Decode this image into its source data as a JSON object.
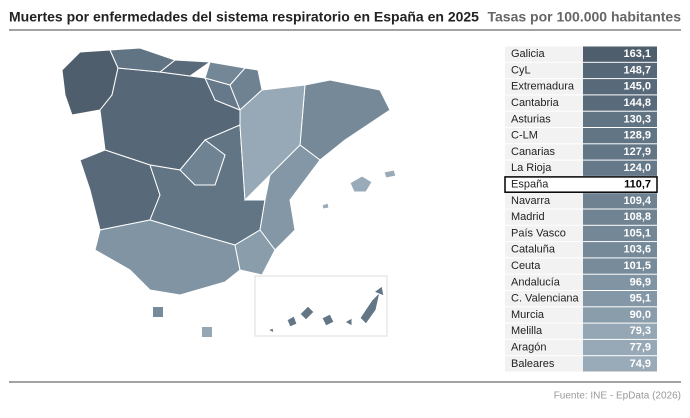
{
  "header": {
    "title": "Muertes por enfermedades del sistema respiratorio en España en 2025",
    "subtitle": "Tasas por 100.000 habitantes"
  },
  "table": {
    "rows": [
      {
        "region": "Galicia",
        "value": "163,1",
        "color": "#4e5e6c"
      },
      {
        "region": "CyL",
        "value": "148,7",
        "color": "#566878"
      },
      {
        "region": "Extremadura",
        "value": "145,0",
        "color": "#586a7a"
      },
      {
        "region": "Cantabria",
        "value": "144,8",
        "color": "#596b7b"
      },
      {
        "region": "Asturias",
        "value": "130,3",
        "color": "#617484"
      },
      {
        "region": "C-LM",
        "value": "128,9",
        "color": "#627585"
      },
      {
        "region": "Canarias",
        "value": "127,9",
        "color": "#637686"
      },
      {
        "region": "La Rioja",
        "value": "124,0",
        "color": "#66798a"
      },
      {
        "region": "España",
        "value": "110,7",
        "color": "#ffffff",
        "highlight": true
      },
      {
        "region": "Navarra",
        "value": "109,4",
        "color": "#6e8292"
      },
      {
        "region": "Madrid",
        "value": "108,8",
        "color": "#6f8393"
      },
      {
        "region": "País Vasco",
        "value": "105,1",
        "color": "#738797"
      },
      {
        "region": "Cataluña",
        "value": "103,6",
        "color": "#758999"
      },
      {
        "region": "Ceuta",
        "value": "101,5",
        "color": "#778b9b"
      },
      {
        "region": "Andalucía",
        "value": "96,9",
        "color": "#8194a3"
      },
      {
        "region": "C. Valenciana",
        "value": "95,1",
        "color": "#8497a6"
      },
      {
        "region": "Murcia",
        "value": "90,0",
        "color": "#8a9dab"
      },
      {
        "region": "Melilla",
        "value": "79,3",
        "color": "#95a7b4"
      },
      {
        "region": "Aragón",
        "value": "77,9",
        "color": "#97a9b6"
      },
      {
        "region": "Baleares",
        "value": "74,9",
        "color": "#99abb8"
      }
    ]
  },
  "footer": {
    "source": "Fuente: INE - EpData (2026)"
  }
}
